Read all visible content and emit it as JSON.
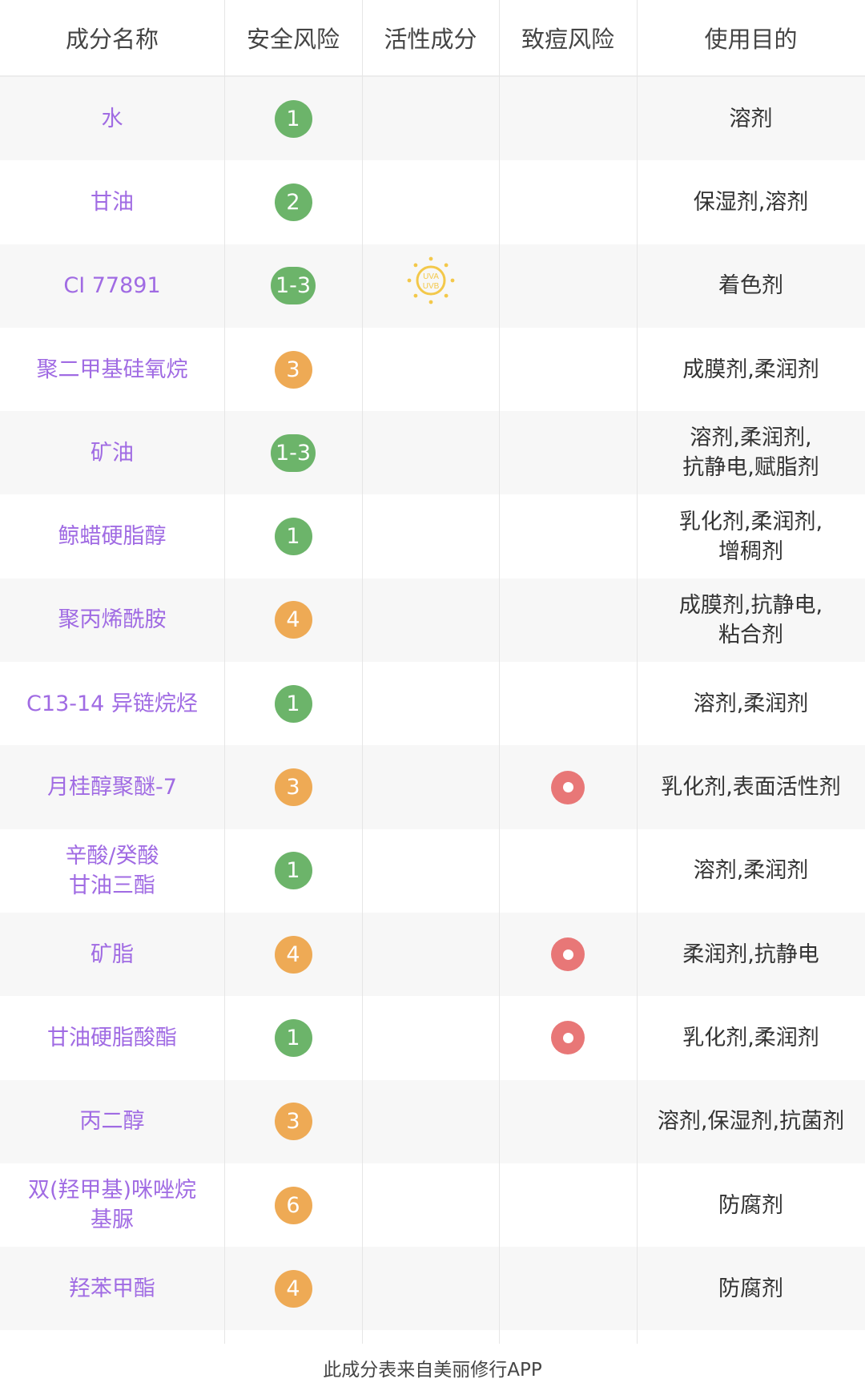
{
  "header": [
    "成分名称",
    "安全风险",
    "活性成分",
    "致痘风险",
    "使用目的"
  ],
  "colors": {
    "name": "#a06be3",
    "safe_green": "#6cb46a",
    "risk_orange": "#eeaa55",
    "acne_red": "#e87777"
  },
  "rows": [
    {
      "name": "水",
      "risk": "1",
      "risk_color": "green",
      "active": "",
      "acne": false,
      "purpose": "溶剂"
    },
    {
      "name": "甘油",
      "risk": "2",
      "risk_color": "green",
      "active": "",
      "acne": false,
      "purpose": "保湿剂,溶剂"
    },
    {
      "name": "CI 77891",
      "risk": "1-3",
      "risk_color": "green",
      "active": "UVA\nUVB",
      "acne": false,
      "purpose": "着色剂"
    },
    {
      "name": "聚二甲基硅氧烷",
      "risk": "3",
      "risk_color": "orange",
      "active": "",
      "acne": false,
      "purpose": "成膜剂,柔润剂"
    },
    {
      "name": "矿油",
      "risk": "1-3",
      "risk_color": "green",
      "active": "",
      "acne": false,
      "purpose": "溶剂,柔润剂,\n抗静电,赋脂剂"
    },
    {
      "name": "鲸蜡硬脂醇",
      "risk": "1",
      "risk_color": "green",
      "active": "",
      "acne": false,
      "purpose": "乳化剂,柔润剂,\n增稠剂"
    },
    {
      "name": "聚丙烯酰胺",
      "risk": "4",
      "risk_color": "orange",
      "active": "",
      "acne": false,
      "purpose": "成膜剂,抗静电,\n粘合剂"
    },
    {
      "name": "C13-14 异链烷烃",
      "risk": "1",
      "risk_color": "green",
      "active": "",
      "acne": false,
      "purpose": "溶剂,柔润剂"
    },
    {
      "name": "月桂醇聚醚-7",
      "risk": "3",
      "risk_color": "orange",
      "active": "",
      "acne": true,
      "purpose": "乳化剂,表面活性剂"
    },
    {
      "name": "辛酸/癸酸\n甘油三酯",
      "risk": "1",
      "risk_color": "green",
      "active": "",
      "acne": false,
      "purpose": "溶剂,柔润剂"
    },
    {
      "name": "矿脂",
      "risk": "4",
      "risk_color": "orange",
      "active": "",
      "acne": true,
      "purpose": "柔润剂,抗静电"
    },
    {
      "name": "甘油硬脂酸酯",
      "risk": "1",
      "risk_color": "green",
      "active": "",
      "acne": true,
      "purpose": "乳化剂,柔润剂"
    },
    {
      "name": "丙二醇",
      "risk": "3",
      "risk_color": "orange",
      "active": "",
      "acne": false,
      "purpose": "溶剂,保湿剂,抗菌剂"
    },
    {
      "name": "双(羟甲基)咪唑烷\n基脲",
      "risk": "6",
      "risk_color": "orange",
      "active": "",
      "acne": false,
      "purpose": "防腐剂"
    },
    {
      "name": "羟苯甲酯",
      "risk": "4",
      "risk_color": "orange",
      "active": "",
      "acne": false,
      "purpose": "防腐剂"
    }
  ],
  "footer": "此成分表来自美丽修行APP"
}
